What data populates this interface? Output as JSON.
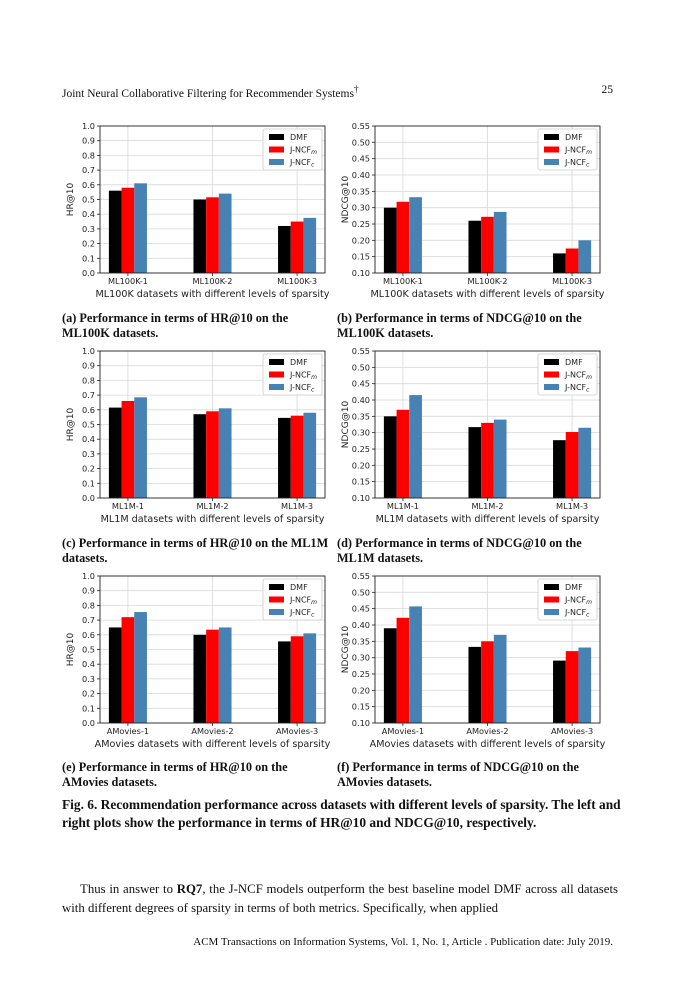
{
  "header": {
    "title": "Joint Neural Collaborative Filtering for Recommender Systems",
    "dagger": "†",
    "page": "25"
  },
  "legend_colors": {
    "DMF": "#000000",
    "J-NCF_m": "#ff0000",
    "J-NCF_c": "#4682b4"
  },
  "chart_data": [
    {
      "type": "bar",
      "ylabel": "HR@10",
      "xlabel": "ML100K datasets with different levels of sparsity",
      "categories": [
        "ML100K-1",
        "ML100K-2",
        "ML100K-3"
      ],
      "ylim": [
        0,
        1.0
      ],
      "yticks": [
        "0.0",
        "0.1",
        "0.2",
        "0.3",
        "0.4",
        "0.5",
        "0.6",
        "0.7",
        "0.8",
        "0.9",
        "1.0"
      ],
      "grid": true,
      "legend": "top-right",
      "series": [
        {
          "name": "DMF",
          "values": [
            0.56,
            0.5,
            0.32
          ]
        },
        {
          "name": "J-NCF",
          "sub": "m",
          "values": [
            0.58,
            0.515,
            0.35
          ]
        },
        {
          "name": "J-NCF",
          "sub": "c",
          "values": [
            0.61,
            0.54,
            0.375
          ]
        }
      ]
    },
    {
      "type": "bar",
      "ylabel": "NDCG@10",
      "xlabel": "ML100K datasets with different levels of sparsity",
      "categories": [
        "ML100K-1",
        "ML100K-2",
        "ML100K-3"
      ],
      "ylim": [
        0.1,
        0.55
      ],
      "yticks": [
        "0.10",
        "0.15",
        "0.20",
        "0.25",
        "0.30",
        "0.35",
        "0.40",
        "0.45",
        "0.50",
        "0.55"
      ],
      "grid": true,
      "legend": "top-right",
      "series": [
        {
          "name": "DMF",
          "values": [
            0.3,
            0.26,
            0.16
          ]
        },
        {
          "name": "J-NCF",
          "sub": "m",
          "values": [
            0.318,
            0.272,
            0.175
          ]
        },
        {
          "name": "J-NCF",
          "sub": "c",
          "values": [
            0.332,
            0.287,
            0.2
          ]
        }
      ]
    },
    {
      "type": "bar",
      "ylabel": "HR@10",
      "xlabel": "ML1M datasets with different levels of sparsity",
      "categories": [
        "ML1M-1",
        "ML1M-2",
        "ML1M-3"
      ],
      "ylim": [
        0,
        1.0
      ],
      "yticks": [
        "0.0",
        "0.1",
        "0.2",
        "0.3",
        "0.4",
        "0.5",
        "0.6",
        "0.7",
        "0.8",
        "0.9",
        "1.0"
      ],
      "grid": true,
      "legend": "top-right",
      "series": [
        {
          "name": "DMF",
          "values": [
            0.615,
            0.57,
            0.545
          ]
        },
        {
          "name": "J-NCF",
          "sub": "m",
          "values": [
            0.66,
            0.59,
            0.56
          ]
        },
        {
          "name": "J-NCF",
          "sub": "c",
          "values": [
            0.685,
            0.61,
            0.58
          ]
        }
      ]
    },
    {
      "type": "bar",
      "ylabel": "NDCG@10",
      "xlabel": "ML1M datasets with different levels of sparsity",
      "categories": [
        "ML1M-1",
        "ML1M-2",
        "ML1M-3"
      ],
      "ylim": [
        0.1,
        0.55
      ],
      "yticks": [
        "0.10",
        "0.15",
        "0.20",
        "0.25",
        "0.30",
        "0.35",
        "0.40",
        "0.45",
        "0.50",
        "0.55"
      ],
      "grid": true,
      "legend": "top-right",
      "series": [
        {
          "name": "DMF",
          "values": [
            0.35,
            0.317,
            0.277
          ]
        },
        {
          "name": "J-NCF",
          "sub": "m",
          "values": [
            0.37,
            0.33,
            0.302
          ]
        },
        {
          "name": "J-NCF",
          "sub": "c",
          "values": [
            0.415,
            0.34,
            0.315
          ]
        }
      ]
    },
    {
      "type": "bar",
      "ylabel": "HR@10",
      "xlabel": "AMovies datasets with different levels of sparsity",
      "categories": [
        "AMovies-1",
        "AMovies-2",
        "AMovies-3"
      ],
      "ylim": [
        0,
        1.0
      ],
      "yticks": [
        "0.0",
        "0.1",
        "0.2",
        "0.3",
        "0.4",
        "0.5",
        "0.6",
        "0.7",
        "0.8",
        "0.9",
        "1.0"
      ],
      "grid": true,
      "legend": "top-right",
      "series": [
        {
          "name": "DMF",
          "values": [
            0.65,
            0.6,
            0.555
          ]
        },
        {
          "name": "J-NCF",
          "sub": "m",
          "values": [
            0.72,
            0.635,
            0.59
          ]
        },
        {
          "name": "J-NCF",
          "sub": "c",
          "values": [
            0.755,
            0.65,
            0.61
          ]
        }
      ]
    },
    {
      "type": "bar",
      "ylabel": "NDCG@10",
      "xlabel": "AMovies datasets with different levels of sparsity",
      "categories": [
        "AMovies-1",
        "AMovies-2",
        "AMovies-3"
      ],
      "ylim": [
        0.1,
        0.55
      ],
      "yticks": [
        "0.10",
        "0.15",
        "0.20",
        "0.25",
        "0.30",
        "0.35",
        "0.40",
        "0.45",
        "0.50",
        "0.55"
      ],
      "grid": true,
      "legend": "top-right",
      "series": [
        {
          "name": "DMF",
          "values": [
            0.39,
            0.333,
            0.291
          ]
        },
        {
          "name": "J-NCF",
          "sub": "m",
          "values": [
            0.422,
            0.35,
            0.32
          ]
        },
        {
          "name": "J-NCF",
          "sub": "c",
          "values": [
            0.457,
            0.37,
            0.331
          ]
        }
      ]
    }
  ],
  "captions": [
    "(a) Performance in terms of HR@10 on the ML100K datasets.",
    "(b) Performance in terms of NDCG@10 on the ML100K datasets.",
    "(c) Performance in terms of HR@10 on the ML1M datasets.",
    "(d) Performance in terms of NDCG@10 on the ML1M datasets.",
    "(e) Performance in terms of HR@10 on the AMovies datasets.",
    "(f) Performance in terms of NDCG@10 on the AMovies datasets."
  ],
  "figure_caption": "Fig. 6. Recommendation performance across datasets with different levels of sparsity. The left and right plots show the performance in terms of HR@10 and NDCG@10, respectively.",
  "body": {
    "before": "Thus in answer to ",
    "bold": "RQ7",
    "after": ", the J-NCF models outperform the best baseline model DMF across all datasets with different degrees of sparsity in terms of both metrics. Specifically, when applied"
  },
  "footer": "ACM Transactions on Information Systems, Vol. 1, No. 1, Article . Publication date: July 2019."
}
